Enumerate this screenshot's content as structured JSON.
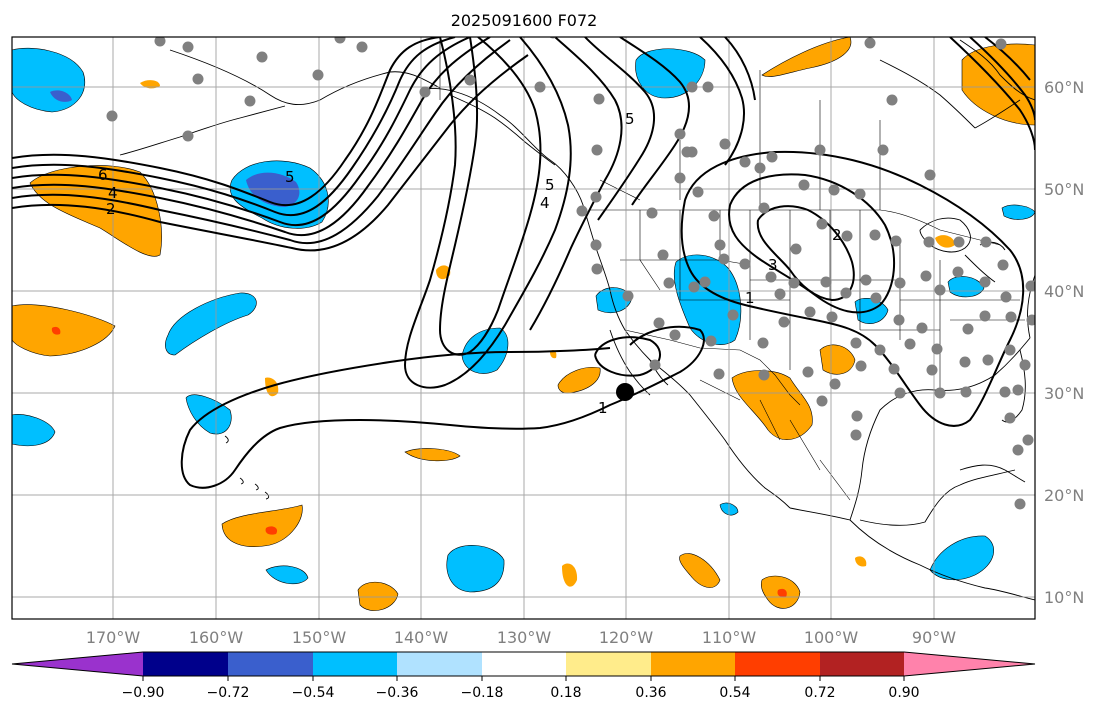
{
  "title": "2025091600 F072",
  "map": {
    "lon_ticks": [
      "170°W",
      "160°W",
      "150°W",
      "140°W",
      "130°W",
      "120°W",
      "110°W",
      "100°W",
      "90°W"
    ],
    "lat_ticks": [
      "60°N",
      "50°N",
      "40°N",
      "30°N",
      "20°N",
      "10°N"
    ],
    "contour_labels": [
      "6",
      "4",
      "2",
      "5",
      "5",
      "4",
      "5",
      "3",
      "2",
      "1",
      "1"
    ],
    "stations": "gray-dots",
    "marker": "black-dot"
  },
  "colorbar": {
    "labels": [
      "−0.90",
      "−0.72",
      "−0.54",
      "−0.36",
      "−0.18",
      "0.18",
      "0.36",
      "0.54",
      "0.72",
      "0.90"
    ],
    "colors": [
      "#9a32cd",
      "#00008b",
      "#3a5fcd",
      "#00bfff",
      "#b0e2ff",
      "#ffffff",
      "#ffec8b",
      "#ffa500",
      "#ff3e00",
      "#b22222",
      "#ff82ab"
    ]
  },
  "colors": {
    "neg_light": "#00bfff",
    "neg_mid": "#3a5fcd",
    "pos_light": "#ffa500",
    "pos_red": "#ff3e00",
    "station": "#808080",
    "grid": "#999999"
  }
}
